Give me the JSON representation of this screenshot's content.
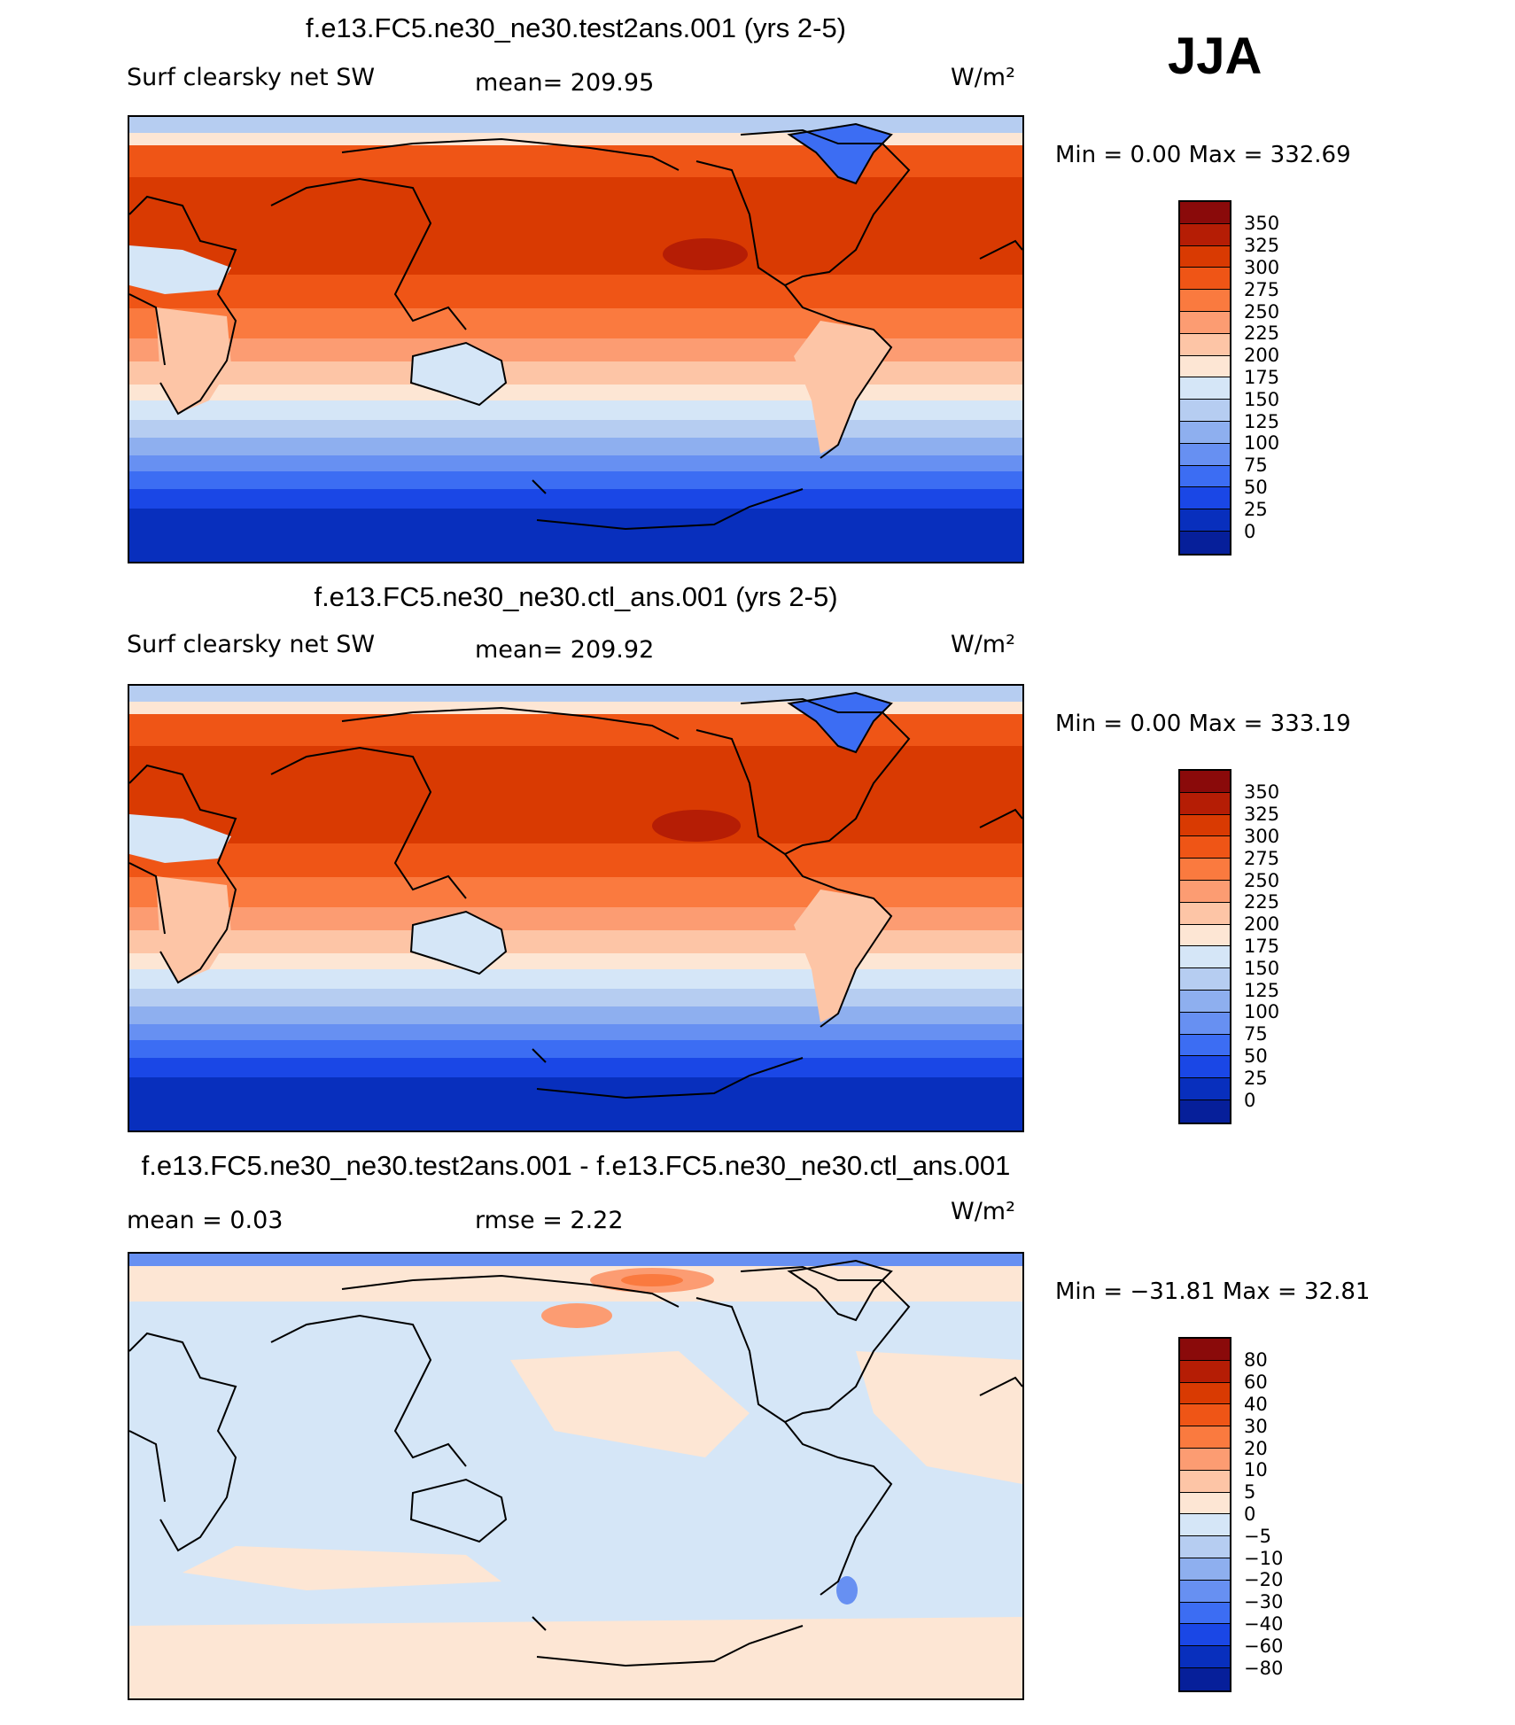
{
  "season": "JJA",
  "units": "W/m²",
  "panels": [
    {
      "title": "f.e13.FC5.ne30_ne30.test2ans.001 (yrs 2-5)",
      "variable": "Surf clearsky net SW",
      "mean_text": "mean=  209.95",
      "minmax_text": "Min =    0.00  Max  =  332.69"
    },
    {
      "title": "f.e13.FC5.ne30_ne30.ctl_ans.001 (yrs 2-5)",
      "variable": "Surf clearsky net SW",
      "mean_text": "mean=  209.92",
      "minmax_text": "Min =    0.00  Max  =  333.19"
    },
    {
      "title": "f.e13.FC5.ne30_ne30.test2ans.001 - f.e13.FC5.ne30_ne30.ctl_ans.001",
      "mean_text": "mean  =     0.03",
      "rmse_text": "rmse  =     2.22",
      "minmax_text": "Min  = −31.81  Max  =    32.81"
    }
  ],
  "chart_data": [
    {
      "type": "heatmap",
      "title": "f.e13.FC5.ne30_ne30.test2ans.001 (yrs 2-5)",
      "variable": "Surf clearsky net SW",
      "units": "W/m²",
      "mean": 209.95,
      "min": 0.0,
      "max": 332.69,
      "colorbar_levels": [
        "350",
        "325",
        "300",
        "275",
        "250",
        "225",
        "200",
        "175",
        "150",
        "125",
        "100",
        "75",
        "50",
        "25",
        "0"
      ],
      "colorbar_colors": [
        "#8a0a0a",
        "#b51d05",
        "#d93a02",
        "#ef5516",
        "#fa7a3f",
        "#fc9c72",
        "#fdc5a6",
        "#fde6d4",
        "#d5e6f7",
        "#b6cdf1",
        "#8eafef",
        "#6790f2",
        "#3c6df3",
        "#1a47e6",
        "#082fbd",
        "#061f9a"
      ]
    },
    {
      "type": "heatmap",
      "title": "f.e13.FC5.ne30_ne30.ctl_ans.001 (yrs 2-5)",
      "variable": "Surf clearsky net SW",
      "units": "W/m²",
      "mean": 209.92,
      "min": 0.0,
      "max": 333.19,
      "colorbar_levels": [
        "350",
        "325",
        "300",
        "275",
        "250",
        "225",
        "200",
        "175",
        "150",
        "125",
        "100",
        "75",
        "50",
        "25",
        "0"
      ],
      "colorbar_colors": [
        "#8a0a0a",
        "#b51d05",
        "#d93a02",
        "#ef5516",
        "#fa7a3f",
        "#fc9c72",
        "#fdc5a6",
        "#fde6d4",
        "#d5e6f7",
        "#b6cdf1",
        "#8eafef",
        "#6790f2",
        "#3c6df3",
        "#1a47e6",
        "#082fbd",
        "#061f9a"
      ]
    },
    {
      "type": "heatmap",
      "title": "f.e13.FC5.ne30_ne30.test2ans.001 - f.e13.FC5.ne30_ne30.ctl_ans.001",
      "units": "W/m²",
      "mean": 0.03,
      "rmse": 2.22,
      "min": -31.81,
      "max": 32.81,
      "colorbar_levels": [
        "80",
        "60",
        "40",
        "30",
        "20",
        "10",
        "5",
        "0",
        "−5",
        "−10",
        "−20",
        "−30",
        "−40",
        "−60",
        "−80"
      ],
      "colorbar_colors": [
        "#8a0a0a",
        "#b51d05",
        "#d93a02",
        "#ef5516",
        "#fa7a3f",
        "#fc9c72",
        "#fdc5a6",
        "#fde6d4",
        "#d5e6f7",
        "#b6cdf1",
        "#8eafef",
        "#6790f2",
        "#3c6df3",
        "#1a47e6",
        "#082fbd",
        "#061f9a"
      ]
    }
  ]
}
